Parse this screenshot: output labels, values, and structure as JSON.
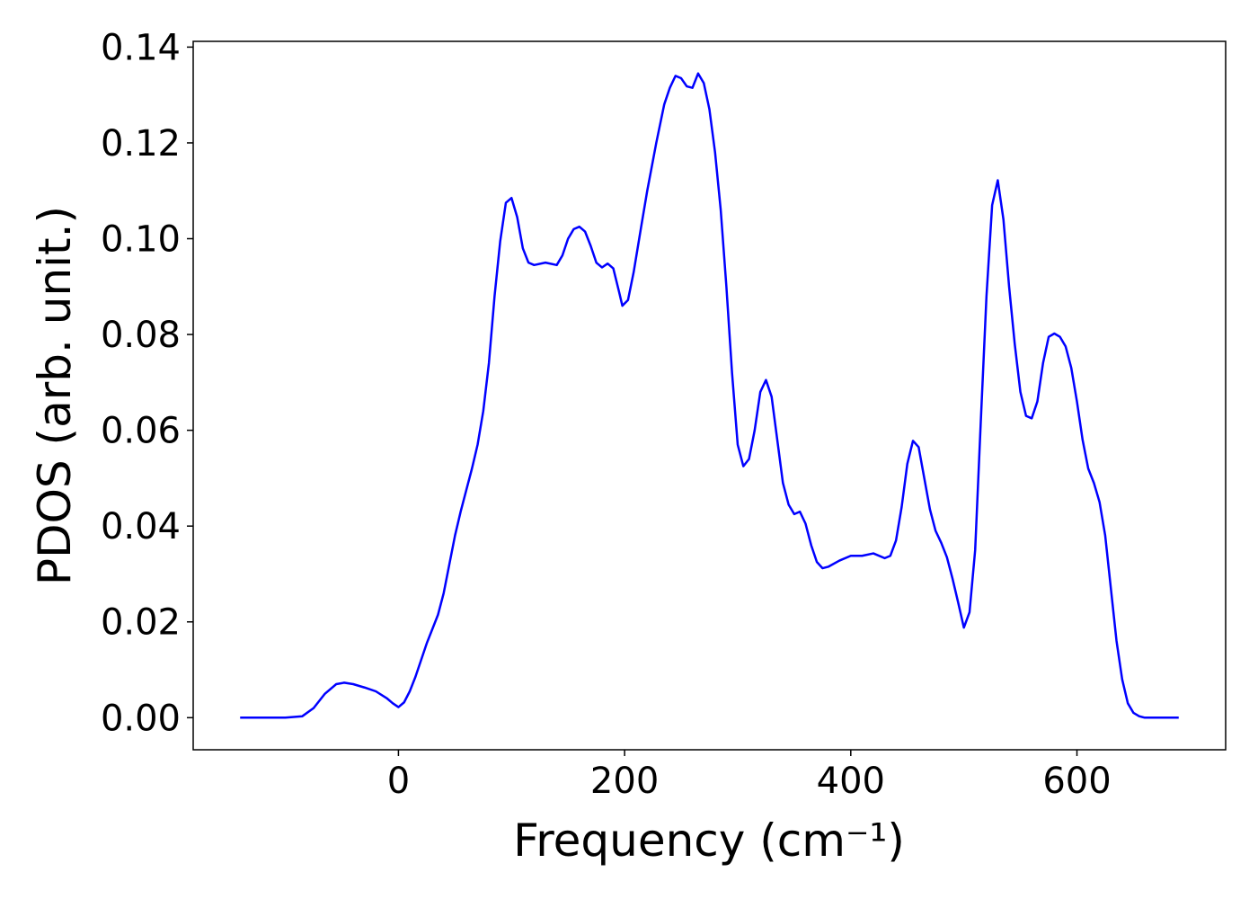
{
  "chart_data": {
    "type": "line",
    "xlabel": "Frequency (cm⁻¹)",
    "ylabel": "PDOS (arb. unit.)",
    "x": [
      -140,
      -100,
      -85,
      -75,
      -65,
      -55,
      -48,
      -40,
      -30,
      -20,
      -10,
      -5,
      0,
      5,
      10,
      15,
      20,
      25,
      30,
      35,
      40,
      45,
      50,
      55,
      60,
      65,
      70,
      75,
      80,
      85,
      90,
      95,
      100,
      105,
      110,
      115,
      120,
      130,
      140,
      145,
      150,
      155,
      160,
      165,
      170,
      175,
      180,
      185,
      190,
      195,
      198,
      203,
      208,
      215,
      220,
      228,
      235,
      240,
      245,
      250,
      255,
      260,
      265,
      270,
      275,
      280,
      285,
      290,
      295,
      300,
      305,
      310,
      315,
      320,
      325,
      330,
      335,
      340,
      345,
      350,
      355,
      360,
      365,
      370,
      375,
      380,
      390,
      400,
      410,
      420,
      430,
      435,
      440,
      445,
      450,
      455,
      460,
      465,
      470,
      475,
      480,
      485,
      490,
      495,
      500,
      505,
      510,
      515,
      520,
      525,
      530,
      535,
      540,
      545,
      550,
      555,
      560,
      565,
      570,
      575,
      580,
      585,
      590,
      595,
      600,
      605,
      610,
      615,
      620,
      625,
      630,
      635,
      640,
      645,
      650,
      655,
      660,
      690
    ],
    "series": [
      {
        "color": "#0000ff",
        "values": [
          0,
          0,
          0.0003,
          0.002,
          0.005,
          0.007,
          0.0073,
          0.007,
          0.0063,
          0.0055,
          0.004,
          0.003,
          0.0022,
          0.0032,
          0.0055,
          0.0085,
          0.012,
          0.0155,
          0.0185,
          0.0215,
          0.026,
          0.032,
          0.038,
          0.043,
          0.0475,
          0.052,
          0.057,
          0.064,
          0.074,
          0.088,
          0.0995,
          0.1075,
          0.1085,
          0.1045,
          0.098,
          0.095,
          0.0945,
          0.095,
          0.0945,
          0.0965,
          0.1,
          0.102,
          0.1025,
          0.1015,
          0.0985,
          0.095,
          0.094,
          0.0948,
          0.0938,
          0.089,
          0.086,
          0.0872,
          0.093,
          0.103,
          0.11,
          0.12,
          0.128,
          0.1315,
          0.134,
          0.1335,
          0.1318,
          0.1315,
          0.1345,
          0.1325,
          0.127,
          0.118,
          0.106,
          0.09,
          0.072,
          0.057,
          0.0525,
          0.054,
          0.06,
          0.068,
          0.0705,
          0.067,
          0.058,
          0.049,
          0.0445,
          0.0425,
          0.043,
          0.0405,
          0.036,
          0.0325,
          0.0312,
          0.0315,
          0.0328,
          0.0338,
          0.0338,
          0.0343,
          0.0333,
          0.0338,
          0.037,
          0.044,
          0.053,
          0.0578,
          0.0565,
          0.05,
          0.0435,
          0.039,
          0.0365,
          0.0335,
          0.029,
          0.024,
          0.0188,
          0.022,
          0.035,
          0.062,
          0.088,
          0.107,
          0.1122,
          0.104,
          0.09,
          0.078,
          0.068,
          0.063,
          0.0625,
          0.066,
          0.074,
          0.0795,
          0.0802,
          0.0795,
          0.0775,
          0.073,
          0.066,
          0.058,
          0.052,
          0.049,
          0.045,
          0.038,
          0.027,
          0.016,
          0.008,
          0.003,
          0.001,
          0.0003,
          0,
          0
        ]
      }
    ],
    "xlim": [
      -181.5,
      731.5
    ],
    "xticks": [
      0,
      200,
      400,
      600
    ],
    "ylim": [
      -0.0067,
      0.1412
    ],
    "yticks": [
      {
        "value": 0,
        "label": "0.00"
      },
      {
        "value": 0.02,
        "label": "0.02"
      },
      {
        "value": 0.04,
        "label": "0.04"
      },
      {
        "value": 0.06,
        "label": "0.06"
      },
      {
        "value": 0.08,
        "label": "0.08"
      },
      {
        "value": 0.1,
        "label": "0.10"
      },
      {
        "value": 0.12,
        "label": "0.12"
      },
      {
        "value": 0.14,
        "label": "0.14"
      }
    ],
    "grid": false
  }
}
